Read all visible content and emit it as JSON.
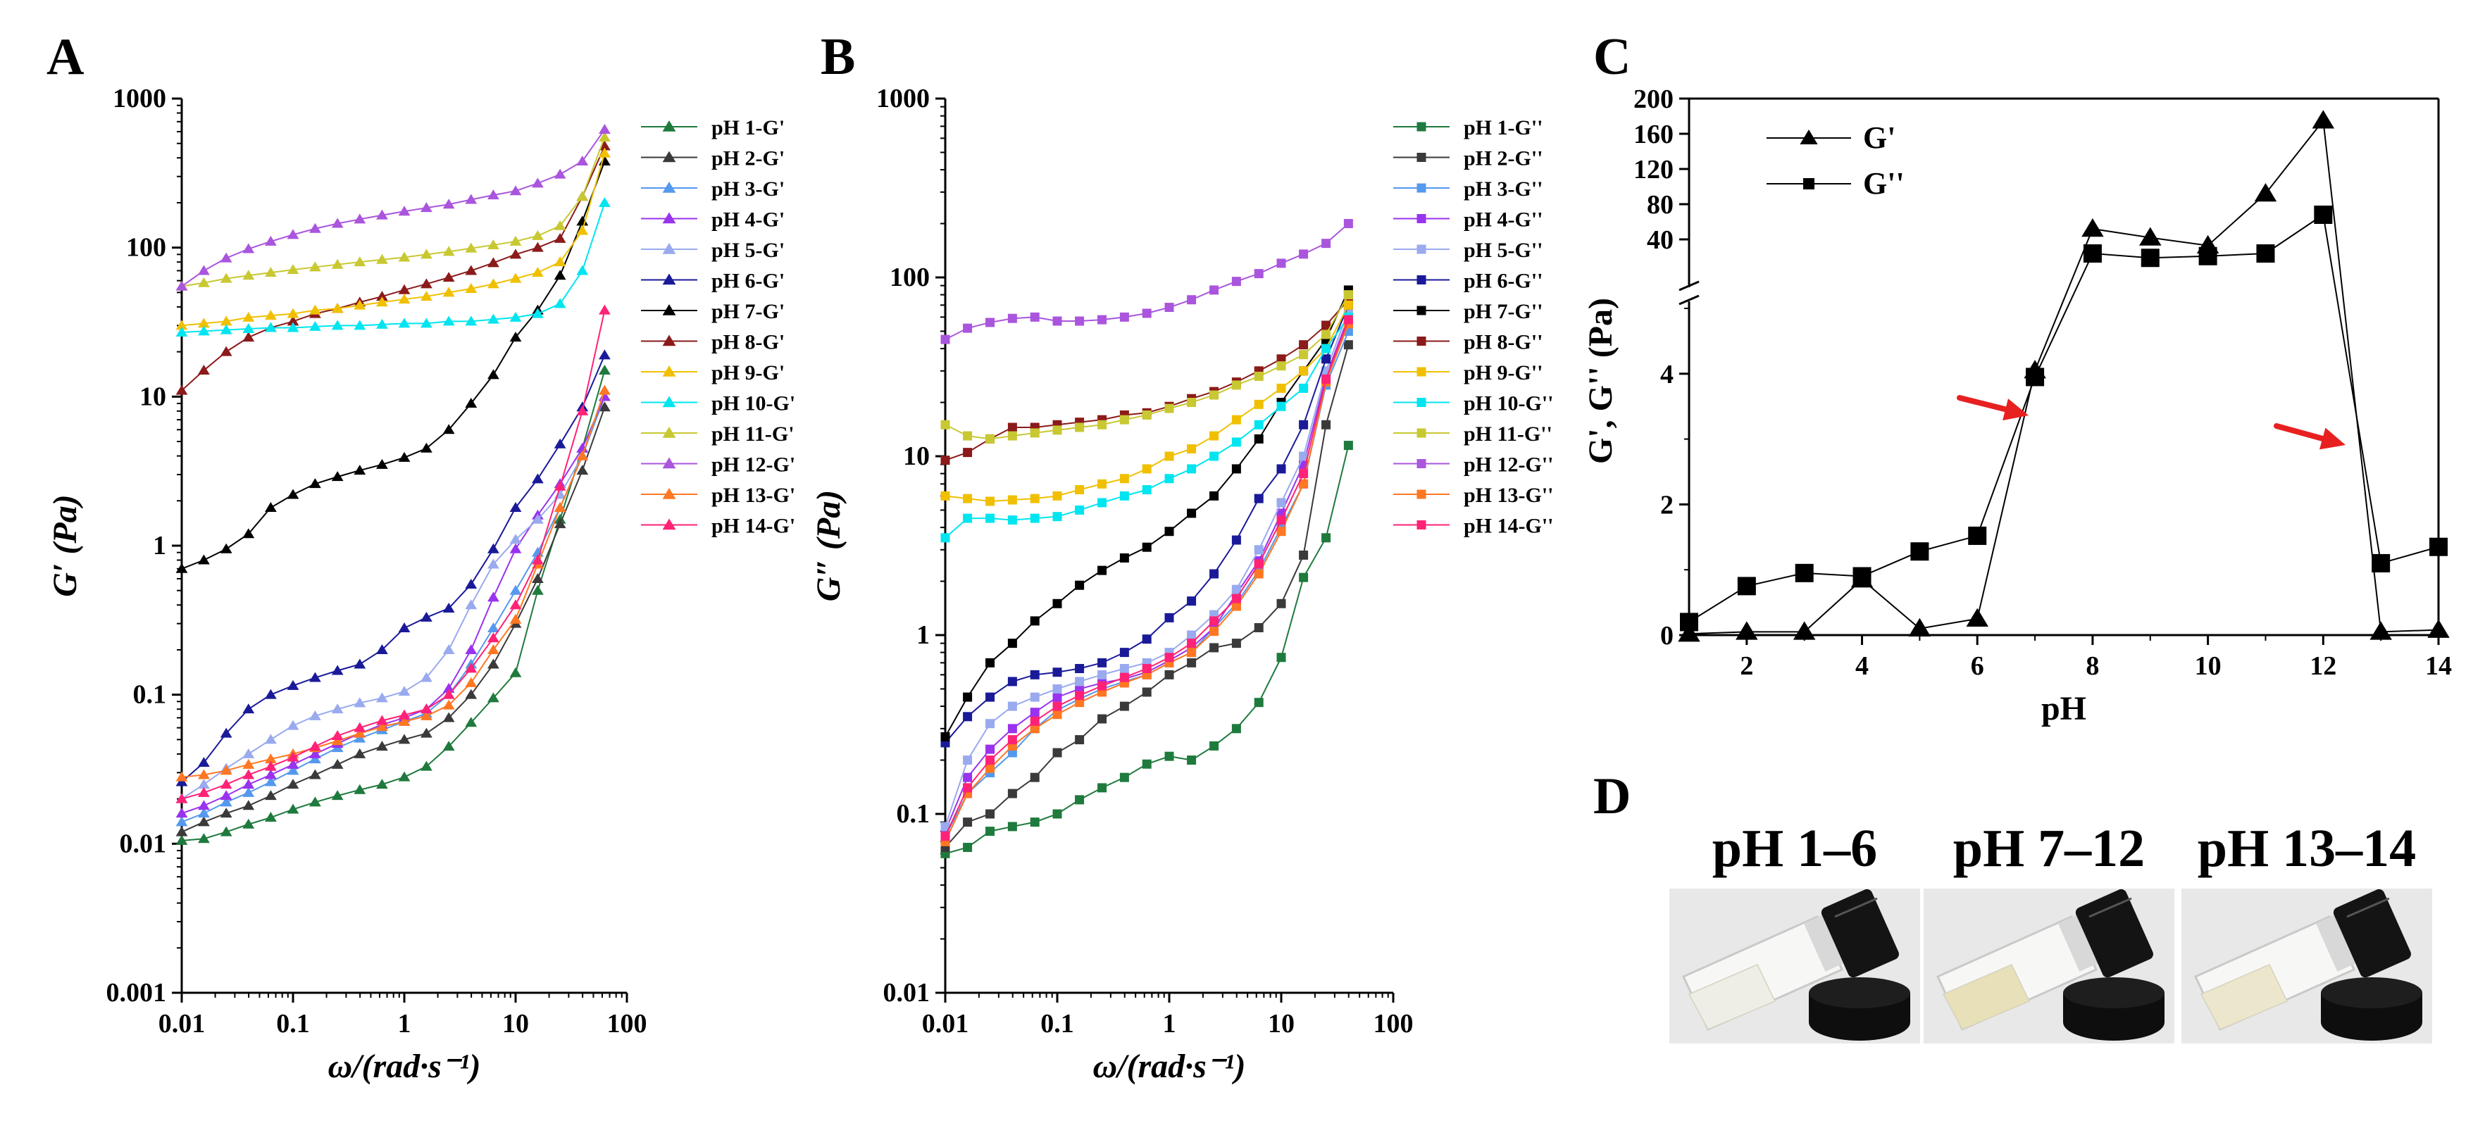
{
  "panel_labels": {
    "a": "A",
    "b": "B",
    "c": "C",
    "d": "D"
  },
  "colors": {
    "pH 1": "#1f7a3d",
    "pH 2": "#3a3a3a",
    "pH 3": "#5599ee",
    "pH 4": "#9933ee",
    "pH 5": "#99aaee",
    "pH 6": "#1a1a99",
    "pH 7": "#000000",
    "pH 8": "#8b1a1a",
    "pH 9": "#f0c000",
    "pH 10": "#00e5f0",
    "pH 11": "#c8c832",
    "pH 12": "#aa55dd",
    "pH 13": "#ff7722",
    "pH 14": "#ff2277"
  },
  "chart_data": [
    {
      "type": "line",
      "panel": "A",
      "title": "",
      "xlabel": "ω/(rad·s⁻¹)",
      "ylabel": "G′ (Pa)",
      "x_scale": "log",
      "y_scale": "log",
      "xlim": [
        0.01,
        100
      ],
      "ylim": [
        0.001,
        1000
      ],
      "x_ticks": [
        "0.01",
        "0.1",
        "1",
        "10",
        "100"
      ],
      "y_ticks": [
        "0.001",
        "0.01",
        "0.1",
        "1",
        "10",
        "100",
        "1000"
      ],
      "marker": "triangle",
      "legend_position": "right",
      "x": [
        0.01,
        0.0158,
        0.0251,
        0.0398,
        0.0631,
        0.1,
        0.158,
        0.251,
        0.398,
        0.631,
        1,
        1.58,
        2.51,
        3.98,
        6.31,
        10,
        15.8,
        25.1,
        39.8,
        63.1
      ],
      "series": [
        {
          "name": "pH 1-G'",
          "values": [
            0.0105,
            0.0108,
            0.012,
            0.0135,
            0.015,
            0.017,
            0.019,
            0.021,
            0.023,
            0.025,
            0.028,
            0.033,
            0.045,
            0.065,
            0.095,
            0.14,
            0.5,
            1.5,
            4.5,
            15
          ]
        },
        {
          "name": "pH 2-G'",
          "values": [
            0.012,
            0.014,
            0.016,
            0.018,
            0.021,
            0.025,
            0.029,
            0.034,
            0.04,
            0.045,
            0.05,
            0.055,
            0.07,
            0.1,
            0.16,
            0.3,
            0.6,
            1.4,
            3.2,
            8.5
          ]
        },
        {
          "name": "pH 3-G'",
          "values": [
            0.014,
            0.016,
            0.019,
            0.022,
            0.026,
            0.031,
            0.037,
            0.044,
            0.051,
            0.058,
            0.066,
            0.075,
            0.1,
            0.16,
            0.28,
            0.5,
            0.9,
            1.8,
            4,
            10
          ]
        },
        {
          "name": "pH 4-G'",
          "values": [
            0.016,
            0.018,
            0.021,
            0.025,
            0.029,
            0.034,
            0.04,
            0.047,
            0.055,
            0.063,
            0.07,
            0.08,
            0.11,
            0.2,
            0.45,
            0.95,
            1.6,
            2.6,
            4.5,
            10
          ]
        },
        {
          "name": "pH 5-G'",
          "values": [
            0.02,
            0.025,
            0.032,
            0.04,
            0.05,
            0.062,
            0.072,
            0.08,
            0.088,
            0.095,
            0.105,
            0.13,
            0.2,
            0.4,
            0.75,
            1.1,
            1.5,
            2.2,
            4,
            11
          ]
        },
        {
          "name": "pH 6-G'",
          "values": [
            0.026,
            0.035,
            0.055,
            0.08,
            0.1,
            0.115,
            0.13,
            0.145,
            0.16,
            0.2,
            0.28,
            0.33,
            0.38,
            0.55,
            0.95,
            1.8,
            2.8,
            4.8,
            8.5,
            19
          ]
        },
        {
          "name": "pH 7-G'",
          "values": [
            0.7,
            0.8,
            0.95,
            1.2,
            1.8,
            2.2,
            2.6,
            2.9,
            3.2,
            3.5,
            3.9,
            4.5,
            6,
            9,
            14,
            25,
            38,
            65,
            150,
            380
          ]
        },
        {
          "name": "pH 8-G'",
          "values": [
            11,
            15,
            20,
            25,
            29,
            32,
            36,
            39,
            43,
            47,
            52,
            57,
            63,
            70,
            79,
            90,
            100,
            115,
            220,
            480
          ]
        },
        {
          "name": "pH 9-G'",
          "values": [
            30,
            31,
            32,
            34,
            35,
            36,
            38,
            39,
            41,
            43,
            45,
            47,
            50,
            53,
            57,
            62,
            68,
            80,
            130,
            430
          ]
        },
        {
          "name": "pH 10-G'",
          "values": [
            27,
            27.5,
            28,
            28.5,
            29,
            29,
            29.5,
            30,
            30,
            30.5,
            31,
            31,
            32,
            32,
            33,
            34,
            36,
            42,
            70,
            200
          ]
        },
        {
          "name": "pH 11-G'",
          "values": [
            55,
            58,
            62,
            65,
            68,
            71,
            74,
            77,
            80,
            83,
            86,
            90,
            94,
            99,
            104,
            110,
            120,
            140,
            220,
            550
          ]
        },
        {
          "name": "pH 12-G'",
          "values": [
            55,
            70,
            85,
            98,
            110,
            122,
            134,
            145,
            155,
            165,
            175,
            185,
            195,
            210,
            225,
            240,
            270,
            310,
            380,
            620
          ]
        },
        {
          "name": "pH 13-G'",
          "values": [
            0.028,
            0.029,
            0.031,
            0.034,
            0.037,
            0.04,
            0.044,
            0.049,
            0.055,
            0.061,
            0.066,
            0.072,
            0.085,
            0.12,
            0.2,
            0.32,
            0.75,
            1.8,
            4,
            11
          ]
        },
        {
          "name": "pH 14-G'",
          "values": [
            0.02,
            0.022,
            0.025,
            0.029,
            0.033,
            0.038,
            0.045,
            0.053,
            0.06,
            0.067,
            0.073,
            0.08,
            0.1,
            0.15,
            0.24,
            0.4,
            0.8,
            2.5,
            8,
            38
          ]
        }
      ]
    },
    {
      "type": "line",
      "panel": "B",
      "title": "",
      "xlabel": "ω/(rad·s⁻¹)",
      "ylabel": "G″ (Pa)",
      "x_scale": "log",
      "y_scale": "log",
      "xlim": [
        0.01,
        100
      ],
      "ylim": [
        0.01,
        1000
      ],
      "x_ticks": [
        "0.01",
        "0.1",
        "1",
        "10",
        "100"
      ],
      "y_ticks": [
        "0.01",
        "0.1",
        "1",
        "10",
        "100",
        "1000"
      ],
      "marker": "square",
      "legend_position": "right",
      "x": [
        0.01,
        0.0158,
        0.0251,
        0.0398,
        0.0631,
        0.1,
        0.158,
        0.251,
        0.398,
        0.631,
        1,
        1.58,
        2.51,
        3.98,
        6.31,
        10,
        15.8,
        25.1,
        39.8
      ],
      "series": [
        {
          "name": "pH 1-G''",
          "values": [
            0.06,
            0.065,
            0.08,
            0.085,
            0.09,
            0.1,
            0.12,
            0.14,
            0.16,
            0.19,
            0.21,
            0.2,
            0.24,
            0.3,
            0.42,
            0.75,
            2.1,
            3.5,
            11.5
          ]
        },
        {
          "name": "pH 2-G''",
          "values": [
            0.065,
            0.09,
            0.1,
            0.13,
            0.16,
            0.22,
            0.26,
            0.34,
            0.4,
            0.48,
            0.6,
            0.7,
            0.85,
            0.9,
            1.1,
            1.5,
            2.8,
            15,
            42
          ]
        },
        {
          "name": "pH 3-G''",
          "values": [
            0.075,
            0.13,
            0.17,
            0.22,
            0.3,
            0.38,
            0.44,
            0.5,
            0.55,
            0.6,
            0.7,
            0.8,
            1.1,
            1.5,
            2.3,
            4,
            7,
            25,
            50
          ]
        },
        {
          "name": "pH 4-G''",
          "values": [
            0.08,
            0.16,
            0.23,
            0.3,
            0.37,
            0.45,
            0.5,
            0.54,
            0.57,
            0.62,
            0.72,
            0.85,
            1.1,
            1.7,
            2.6,
            4.8,
            9,
            28,
            60
          ]
        },
        {
          "name": "pH 5-G''",
          "values": [
            0.085,
            0.2,
            0.32,
            0.4,
            0.45,
            0.5,
            0.55,
            0.6,
            0.65,
            0.7,
            0.8,
            1.0,
            1.3,
            1.8,
            3.0,
            5.5,
            10,
            30,
            65
          ]
        },
        {
          "name": "pH 6-G''",
          "values": [
            0.25,
            0.35,
            0.45,
            0.55,
            0.6,
            0.62,
            0.65,
            0.7,
            0.8,
            0.95,
            1.25,
            1.55,
            2.2,
            3.4,
            5.8,
            8.5,
            15,
            35,
            70
          ]
        },
        {
          "name": "pH 7-G''",
          "values": [
            0.27,
            0.45,
            0.7,
            0.9,
            1.2,
            1.5,
            1.9,
            2.3,
            2.7,
            3.1,
            3.8,
            4.8,
            6,
            8.5,
            12.5,
            20,
            30,
            45,
            85
          ]
        },
        {
          "name": "pH 8-G''",
          "values": [
            9.5,
            10.5,
            12.5,
            14.5,
            14.5,
            15,
            15.5,
            16,
            17,
            17.5,
            19,
            21,
            23,
            26,
            30,
            35,
            42,
            54,
            75
          ]
        },
        {
          "name": "pH 9-G''",
          "values": [
            6.0,
            5.8,
            5.6,
            5.7,
            5.8,
            6,
            6.5,
            7,
            7.5,
            8.5,
            10,
            11,
            13,
            16,
            19.5,
            24,
            30,
            40,
            70
          ]
        },
        {
          "name": "pH 10-G''",
          "values": [
            3.5,
            4.5,
            4.5,
            4.4,
            4.5,
            4.6,
            5,
            5.5,
            6,
            6.5,
            7.5,
            8.5,
            10,
            12,
            15,
            19,
            24,
            40,
            60
          ]
        },
        {
          "name": "pH 11-G''",
          "values": [
            15,
            13,
            12.5,
            13,
            13.5,
            14,
            14.5,
            15,
            16,
            17,
            18.5,
            20,
            22,
            25,
            28,
            32,
            37,
            48,
            80
          ]
        },
        {
          "name": "pH 12-G''",
          "values": [
            45,
            52,
            56,
            59,
            60,
            57,
            57,
            58,
            60,
            63,
            68,
            75,
            85,
            95,
            105,
            120,
            135,
            155,
            200
          ]
        },
        {
          "name": "pH 13-G''",
          "values": [
            0.07,
            0.13,
            0.18,
            0.24,
            0.3,
            0.36,
            0.42,
            0.48,
            0.54,
            0.6,
            0.7,
            0.8,
            1.05,
            1.45,
            2.2,
            3.8,
            7,
            26,
            55
          ]
        },
        {
          "name": "pH 14-G''",
          "values": [
            0.075,
            0.14,
            0.2,
            0.26,
            0.33,
            0.4,
            0.46,
            0.52,
            0.58,
            0.65,
            0.75,
            0.9,
            1.2,
            1.6,
            2.5,
            4.4,
            8,
            27,
            58
          ]
        }
      ]
    },
    {
      "type": "line",
      "panel": "C",
      "title": "",
      "xlabel": "pH",
      "ylabel": "G', G'' (Pa)",
      "x_ticks": [
        "2",
        "4",
        "6",
        "8",
        "10",
        "12",
        "14"
      ],
      "xlim": [
        1,
        14
      ],
      "y_axis_break": true,
      "y_lower": {
        "range": [
          0,
          5
        ],
        "ticks": [
          "0",
          "2",
          "4"
        ]
      },
      "y_upper": {
        "range": [
          0,
          200
        ],
        "ticks": [
          "40",
          "80",
          "120",
          "160",
          "200"
        ]
      },
      "legend_position": "top-left",
      "x": [
        1,
        2,
        3,
        4,
        5,
        6,
        7,
        8,
        9,
        10,
        11,
        12,
        13,
        14
      ],
      "series": [
        {
          "name": "G'",
          "marker": "triangle",
          "values": [
            0.02,
            0.05,
            0.05,
            0.85,
            0.1,
            0.25,
            4.05,
            52,
            42,
            33,
            92,
            175,
            0.05,
            0.08
          ]
        },
        {
          "name": "G''",
          "marker": "square",
          "values": [
            0.2,
            0.75,
            0.95,
            0.9,
            1.28,
            1.52,
            3.95,
            24,
            19,
            21,
            24,
            68,
            1.1,
            1.35
          ]
        }
      ],
      "annotations": [
        {
          "type": "arrow",
          "color": "#e82020",
          "points_to_pH": 7
        },
        {
          "type": "arrow",
          "color": "#e82020",
          "points_to_pH": 12.8
        }
      ]
    }
  ],
  "panel_d": {
    "vials": [
      {
        "title": "pH 1–6",
        "liquid_color": "#efeee6"
      },
      {
        "title": "pH 7–12",
        "liquid_color": "#e7e0b8"
      },
      {
        "title": "pH 13–14",
        "liquid_color": "#ece7cc"
      }
    ]
  }
}
